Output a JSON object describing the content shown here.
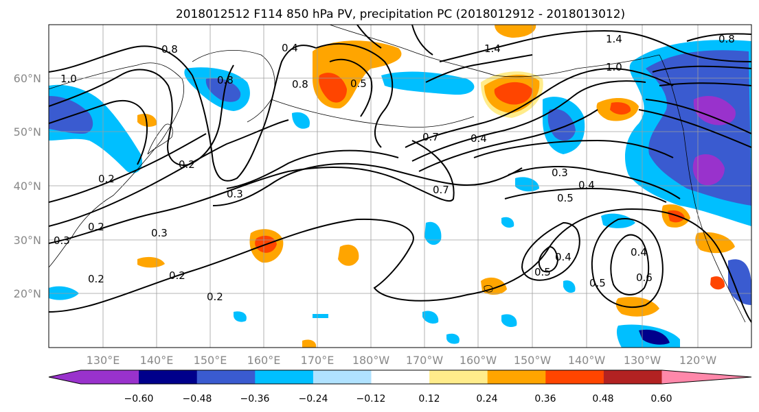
{
  "title": "2018012512 F114 850 hPa PV, precipitation PC (2018012912 - 2018013012)",
  "map": {
    "lon_labels": [
      "130°E",
      "140°E",
      "150°E",
      "160°E",
      "170°E",
      "180°W",
      "170°W",
      "160°W",
      "150°W",
      "140°W",
      "130°W",
      "120°W"
    ],
    "lat_labels": [
      "60°N",
      "50°N",
      "40°N",
      "30°N",
      "20°N"
    ]
  },
  "colorbar": {
    "tick_labels": [
      "−0.60",
      "−0.48",
      "−0.36",
      "−0.24",
      "−0.12",
      "0.12",
      "0.24",
      "0.36",
      "0.48",
      "0.60"
    ],
    "colors": [
      "#9932CC",
      "#00008B",
      "#3A5BD0",
      "#00BFFF",
      "#B0E2FF",
      "#FFFFFF",
      "#FFEC8B",
      "#FFA500",
      "#FF4500",
      "#B22222",
      "#FF88AA"
    ]
  },
  "contour_labels": {
    "c1": "1.0",
    "c2": "0.8",
    "c3": "0.2",
    "c4": "0.2",
    "c5": "0.3",
    "c6": "0.3",
    "c7": "0.2",
    "c8": "0.2",
    "c9": "0.2",
    "c10": "0.3",
    "c11": "0.2",
    "c12": "0.7",
    "c13": "0.4",
    "c14": "0.7",
    "c15": "0.3",
    "c16": "0.4",
    "c17": "0.5",
    "c18": "0.4",
    "c19": "0.5",
    "c20": "0.5",
    "c21": "0.6",
    "c22": "0.4",
    "c23": "1.4",
    "c24": "1.4",
    "c25": "1.0",
    "c26": "0.8",
    "c27": "0.8",
    "c28": "0.4",
    "c29": "0.8",
    "c30": "0.5"
  }
}
